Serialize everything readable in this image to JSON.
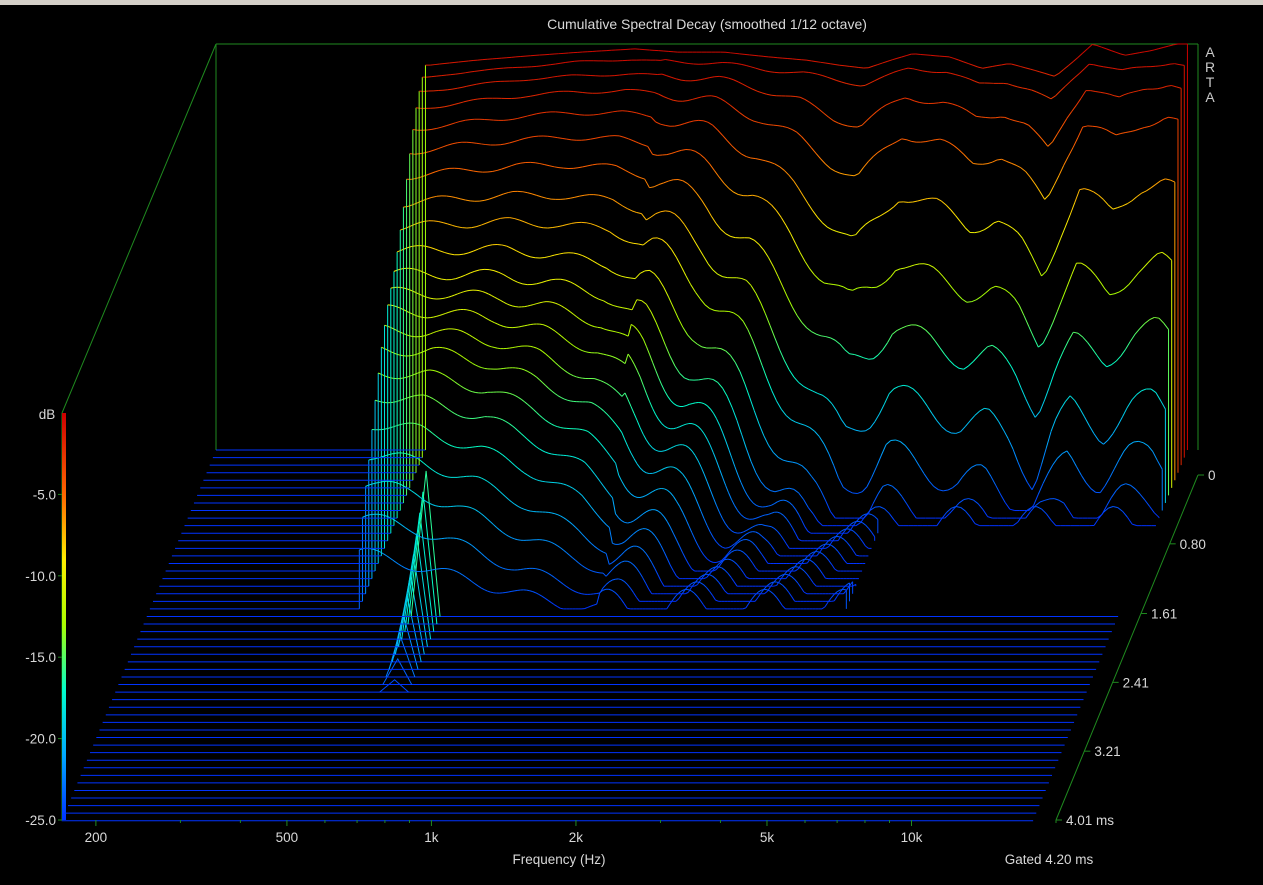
{
  "app": {
    "brand_letters": [
      "A",
      "R",
      "T",
      "A"
    ],
    "gated_label": "Gated 4.20 ms"
  },
  "colors": {
    "background": "#000000",
    "frame": "#1f8a1f",
    "text": "#d8d8d8",
    "window_chrome": "#d4d0c8"
  },
  "chart_data": {
    "type": "waterfall",
    "title": "Cumulative Spectral Decay (smoothed 1/12 octave)",
    "xlabel": "Frequency (Hz)",
    "x_scale": "log",
    "x_range": [
      170,
      20000
    ],
    "x_ticks": [
      {
        "value": 200,
        "label": "200"
      },
      {
        "value": 500,
        "label": "500"
      },
      {
        "value": 1000,
        "label": "1k"
      },
      {
        "value": 2000,
        "label": "2k"
      },
      {
        "value": 5000,
        "label": "5k"
      },
      {
        "value": 10000,
        "label": "10k"
      }
    ],
    "x_minor_ticks": [
      300,
      400,
      600,
      700,
      800,
      900,
      3000,
      4000,
      6000,
      7000,
      8000,
      9000,
      20000
    ],
    "zlabel": "dB",
    "z_range": [
      -25,
      0
    ],
    "z_ticks": [
      {
        "value": -5,
        "label": "-5.0"
      },
      {
        "value": -10,
        "label": "-10.0"
      },
      {
        "value": -15,
        "label": "-15.0"
      },
      {
        "value": -20,
        "label": "-20.0"
      },
      {
        "value": -25,
        "label": "-25.0"
      }
    ],
    "t_unit": "ms",
    "t_range": [
      0,
      4.01
    ],
    "t_ticks": [
      {
        "value": 0,
        "label": "0"
      },
      {
        "value": 0.8,
        "label": "0.80"
      },
      {
        "value": 1.61,
        "label": "1.61"
      },
      {
        "value": 2.41,
        "label": "2.41"
      },
      {
        "value": 3.21,
        "label": "3.21"
      },
      {
        "value": 4.01,
        "label": "4.01 ms"
      }
    ],
    "colormap": [
      {
        "db": -25,
        "color": "#0033ff"
      },
      {
        "db": -21,
        "color": "#00aaff"
      },
      {
        "db": -17,
        "color": "#00ffcc"
      },
      {
        "db": -13,
        "color": "#aaff00"
      },
      {
        "db": -9,
        "color": "#ffee00"
      },
      {
        "db": -5,
        "color": "#ff6600"
      },
      {
        "db": 0,
        "color": "#cc0000"
      }
    ],
    "slices": {
      "count": 50,
      "time_step_ms": 0.082
    },
    "lower_cutoff_hz": [
      480,
      560,
      600,
      655
    ],
    "upper_cutoff_hz": [
      19000,
      19000,
      8500,
      4600
    ],
    "series": [
      {
        "t_ms": 0.0,
        "freq_hz": [
          480,
          600,
          800,
          1000,
          1300,
          1600,
          2000,
          2500,
          3000,
          3500,
          4000,
          4500,
          5000,
          6000,
          7000,
          8000,
          9000,
          10000,
          11000,
          12000,
          14000,
          16000,
          18000,
          19000
        ],
        "db": [
          -1.3,
          -1.0,
          -0.7,
          -0.5,
          -0.3,
          -0.5,
          -0.5,
          -0.8,
          -1.0,
          -1.3,
          -1.5,
          -1.0,
          -0.6,
          -0.8,
          -1.5,
          -1.2,
          -1.6,
          -2.0,
          -1.0,
          0.0,
          -0.7,
          -0.4,
          0.0,
          0.0
        ]
      },
      {
        "t_ms": 0.08,
        "freq_hz": [
          480,
          600,
          800,
          1000,
          1300,
          1600,
          2000,
          2500,
          3000,
          3500,
          4000,
          4500,
          5000,
          6000,
          7000,
          8000,
          9000,
          10000,
          11000,
          12000,
          14000,
          16000,
          18000,
          19000
        ],
        "db": [
          -1.6,
          -1.2,
          -0.9,
          -0.6,
          -0.5,
          -0.6,
          -0.7,
          -1.1,
          -1.3,
          -1.7,
          -2.0,
          -1.5,
          -1.0,
          -1.2,
          -2.0,
          -1.8,
          -2.3,
          -3.0,
          -1.7,
          -0.6,
          -1.2,
          -0.9,
          -0.6,
          -0.8
        ]
      },
      {
        "t_ms": 0.16,
        "freq_hz": [
          480,
          600,
          800,
          1000,
          1300,
          1600,
          2000,
          2500,
          3000,
          3500,
          4000,
          4500,
          5000,
          6000,
          7000,
          8000,
          9000,
          10000,
          11000,
          12000,
          14000,
          16000,
          18000,
          19000
        ],
        "db": [
          -2.0,
          -1.6,
          -1.2,
          -1.0,
          -0.9,
          -1.0,
          -1.2,
          -1.8,
          -2.5,
          -3.5,
          -4.0,
          -3.0,
          -2.2,
          -2.6,
          -3.5,
          -3.2,
          -4.0,
          -5.5,
          -3.2,
          -1.6,
          -2.5,
          -1.6,
          -1.4,
          -1.8
        ]
      },
      {
        "t_ms": 0.25,
        "freq_hz": [
          480,
          600,
          800,
          1000,
          1300,
          1600,
          2000,
          2500,
          3000,
          3500,
          4000,
          4500,
          5000,
          6000,
          7000,
          8000,
          9000,
          10000,
          11000,
          12000,
          14000,
          16000,
          18000,
          19000
        ],
        "db": [
          -2.6,
          -2.2,
          -1.8,
          -1.6,
          -1.5,
          -1.7,
          -2.2,
          -3.2,
          -4.5,
          -6.0,
          -7.0,
          -5.5,
          -4.2,
          -4.8,
          -6.0,
          -5.5,
          -6.8,
          -8.5,
          -5.6,
          -3.6,
          -4.6,
          -3.5,
          -3.2,
          -3.6
        ]
      },
      {
        "t_ms": 0.33,
        "freq_hz": [
          480,
          600,
          800,
          1000,
          1300,
          1600,
          2000,
          2500,
          3000,
          3500,
          4000,
          4500,
          5000,
          6000,
          7000,
          8000,
          9000,
          10000,
          11000,
          12000,
          14000,
          16000,
          18000,
          19000
        ],
        "db": [
          -3.4,
          -3.0,
          -2.6,
          -2.4,
          -2.4,
          -2.7,
          -3.5,
          -5.0,
          -7.0,
          -9.0,
          -10.5,
          -9.0,
          -7.4,
          -8.2,
          -9.5,
          -9.0,
          -10.5,
          -12.5,
          -9.5,
          -7.2,
          -8.6,
          -7.0,
          -6.8,
          -7.2
        ]
      },
      {
        "t_ms": 0.41,
        "freq_hz": [
          480,
          600,
          800,
          1000,
          1300,
          1600,
          2000,
          2500,
          3000,
          3500,
          4000,
          4500,
          5000,
          6000,
          7000,
          8000,
          9000,
          10000,
          11000,
          12000,
          14000,
          16000,
          18000,
          19000
        ],
        "db": [
          -4.3,
          -3.9,
          -3.6,
          -3.4,
          -3.5,
          -4.0,
          -5.2,
          -7.0,
          -9.5,
          -12.0,
          -13.5,
          -12.5,
          -11.0,
          -12.0,
          -13.0,
          -12.8,
          -14.0,
          -16.0,
          -13.5,
          -11.5,
          -13.0,
          -11.5,
          -11.0,
          -11.5
        ]
      },
      {
        "t_ms": 0.49,
        "freq_hz": [
          480,
          600,
          800,
          1000,
          1300,
          1600,
          2000,
          2500,
          3000,
          3500,
          4000,
          4500,
          5000,
          6000,
          7000,
          8000,
          9000,
          10000,
          11000,
          12000,
          14000,
          16000,
          18000,
          19000
        ],
        "db": [
          -5.3,
          -5.0,
          -4.7,
          -4.6,
          -4.8,
          -5.5,
          -7.0,
          -9.5,
          -12.5,
          -15.0,
          -16.8,
          -16.0,
          -14.5,
          -15.5,
          -16.5,
          -16.2,
          -17.5,
          -19.5,
          -17.0,
          -15.5,
          -16.5,
          -15.0,
          -14.6,
          -15.0
        ]
      },
      {
        "t_ms": 0.57,
        "freq_hz": [
          480,
          600,
          800,
          1000,
          1300,
          1600,
          2000,
          2500,
          3000,
          3500,
          4000,
          4500,
          5000,
          6000,
          7000,
          8000,
          9000,
          10000,
          11000,
          12000,
          14000,
          16000,
          18000,
          19000
        ],
        "db": [
          -6.5,
          -6.2,
          -6.0,
          -6.0,
          -6.3,
          -7.2,
          -9.0,
          -12.0,
          -15.5,
          -18.5,
          -20.5,
          -19.5,
          -18.0,
          -19.0,
          -20.0,
          -19.8,
          -21.0,
          -23.5,
          -20.5,
          -19.0,
          -20.5,
          -19.0,
          -18.5,
          -19.0
        ]
      },
      {
        "t_ms": 0.66,
        "freq_hz": [
          480,
          600,
          800,
          1000,
          1300,
          1600,
          2000,
          2500,
          3000,
          3500,
          4000,
          4500,
          5000,
          6000,
          7000,
          8000,
          9000,
          10000,
          11000,
          12000,
          14000,
          16000,
          18000,
          19000
        ],
        "db": [
          -7.6,
          -7.4,
          -7.3,
          -7.4,
          -7.8,
          -8.9,
          -11.0,
          -14.5,
          -18.0,
          -21.0,
          -23.5,
          -23.0,
          -21.5,
          -22.5,
          -23.5,
          -23.2,
          -24.2,
          -24.8,
          -23.5,
          -22.0,
          -23.2,
          -22.0,
          -21.5,
          -22.0
        ]
      },
      {
        "t_ms": 0.74,
        "freq_hz": [
          480,
          600,
          800,
          1000,
          1300,
          1600,
          2000,
          2500,
          3000,
          3500,
          4000,
          4500,
          5000,
          6000,
          7000,
          8000,
          9000,
          10000,
          11000,
          12000,
          14000,
          16000,
          18000,
          19000
        ],
        "db": [
          -8.6,
          -8.5,
          -8.5,
          -8.8,
          -9.4,
          -10.8,
          -13.2,
          -17.0,
          -20.5,
          -23.5,
          -25.0,
          -25.0,
          -24.0,
          -24.5,
          -25.0,
          -24.8,
          -25.0,
          -25.0,
          -25.0,
          -24.2,
          -24.8,
          -24.0,
          -23.8,
          -24.0
        ]
      },
      {
        "t_ms": 0.82,
        "freq_hz": [
          480,
          600,
          800,
          1000,
          1300,
          1600,
          2000,
          2500,
          3000,
          3500,
          4000,
          4500,
          5000,
          6000,
          7000,
          8000,
          9000,
          10000,
          11000,
          12000,
          14000,
          16000,
          18000,
          19000
        ],
        "db": [
          -9.5,
          -9.5,
          -9.6,
          -10.0,
          -10.8,
          -12.5,
          -15.2,
          -19.0,
          -22.5,
          -24.8,
          -25.0,
          -25.0,
          -25.0,
          -25.0,
          -25.0,
          -25.0,
          -25.0,
          -25.0,
          -25.0,
          -25.0,
          -25.0,
          -25.0,
          -25.0,
          -25.0
        ]
      },
      {
        "t_ms": 0.9,
        "freq_hz": [
          480,
          600,
          800,
          1000,
          1300,
          1600,
          2000,
          2500,
          3000,
          3500,
          4000,
          4500,
          5000
        ],
        "db": [
          -10.2,
          -10.2,
          -10.5,
          -11.0,
          -12.0,
          -13.8,
          -16.8,
          -20.5,
          -23.5,
          -25.0,
          -25.0,
          -25.0,
          -25.0
        ]
      },
      {
        "t_ms": 0.98,
        "freq_hz": [
          480,
          600,
          800,
          1000,
          1300,
          1600,
          2000,
          2500,
          3000,
          3500,
          4000,
          4500,
          5000
        ],
        "db": [
          -10.8,
          -10.9,
          -11.3,
          -12.0,
          -13.2,
          -15.0,
          -18.2,
          -21.5,
          -24.2,
          -25.0,
          -25.0,
          -25.0,
          -25.0
        ]
      },
      {
        "t_ms": 1.06,
        "freq_hz": [
          480,
          600,
          800,
          1000,
          1300,
          1600,
          2000,
          2500,
          3000,
          3500,
          4000,
          4500,
          5000
        ],
        "db": [
          -11.5,
          -11.6,
          -12.2,
          -13.0,
          -14.5,
          -16.5,
          -19.5,
          -22.5,
          -24.8,
          -25.0,
          -25.0,
          -25.0,
          -25.0
        ]
      },
      {
        "t_ms": 1.15,
        "freq_hz": [
          480,
          600,
          800,
          1000,
          1300,
          1600,
          2000,
          2500,
          3000,
          3500,
          4000,
          4500,
          5000
        ],
        "db": [
          -12.3,
          -12.4,
          -13.2,
          -14.2,
          -15.8,
          -18.0,
          -21.0,
          -23.5,
          -25.0,
          -25.0,
          -25.0,
          -25.0,
          -25.0
        ]
      },
      {
        "t_ms": 1.23,
        "freq_hz": [
          480,
          600,
          800,
          1000,
          1300,
          1600,
          2000,
          2500,
          3000,
          3500,
          4000,
          4500,
          5000
        ],
        "db": [
          -13.2,
          -13.4,
          -14.3,
          -15.5,
          -17.2,
          -19.5,
          -22.2,
          -24.2,
          -25.0,
          -25.0,
          -25.0,
          -25.0,
          -25.0
        ]
      },
      {
        "t_ms": 1.31,
        "freq_hz": [
          480,
          600,
          800,
          1000,
          1300,
          1600,
          2000,
          2500,
          3000,
          3500,
          4000,
          4500,
          5000
        ],
        "db": [
          -14.2,
          -14.5,
          -15.5,
          -16.8,
          -18.6,
          -21.0,
          -23.2,
          -24.8,
          -25.0,
          -25.0,
          -25.0,
          -25.0,
          -25.0
        ]
      },
      {
        "t_ms": 1.39,
        "freq_hz": [
          480,
          600,
          800,
          1000,
          1300,
          1600,
          2000,
          2500,
          3000,
          3500,
          4000,
          4500,
          5000
        ],
        "db": [
          -15.4,
          -15.8,
          -17.0,
          -18.2,
          -20.0,
          -22.2,
          -24.0,
          -25.0,
          -25.0,
          -25.0,
          -25.0,
          -25.0,
          -25.0
        ]
      },
      {
        "t_ms": 1.47,
        "freq_hz": [
          480,
          600,
          800,
          1000,
          1300,
          1600,
          2000,
          2500,
          3000,
          3500,
          4000,
          4500,
          5000
        ],
        "db": [
          -16.8,
          -17.2,
          -18.5,
          -19.8,
          -21.5,
          -23.2,
          -24.6,
          -25.0,
          -25.0,
          -25.0,
          -25.0,
          -25.0,
          -25.0
        ]
      },
      {
        "t_ms": 1.56,
        "freq_hz": [
          480,
          600,
          800,
          1000,
          1300,
          1600,
          2000,
          2500,
          3000,
          3500,
          4000,
          4500,
          5000
        ],
        "db": [
          -18.2,
          -18.8,
          -20.2,
          -21.5,
          -22.8,
          -24.0,
          -25.0,
          -25.0,
          -25.0,
          -25.0,
          -25.0,
          -25.0,
          -25.0
        ]
      },
      {
        "t_ms": 1.64,
        "freq_hz": [
          480,
          600,
          800,
          1000,
          1300,
          1600,
          2000,
          2500,
          3000,
          3500,
          4000,
          4500,
          5000
        ],
        "db": [
          -19.8,
          -20.5,
          -21.8,
          -23.0,
          -24.0,
          -24.8,
          -25.0,
          -25.0,
          -25.0,
          -25.0,
          -25.0,
          -25.0,
          -25.0
        ]
      },
      {
        "t_ms": 1.72,
        "freq_hz": [
          480,
          600,
          800,
          1000,
          1300,
          1600,
          2000,
          2500,
          3000,
          3500,
          4000,
          4500,
          5000
        ],
        "db": [
          -21.5,
          -22.2,
          -23.2,
          -24.0,
          -24.8,
          -25.0,
          -25.0,
          -25.0,
          -25.0,
          -25.0,
          -25.0,
          -25.0,
          -25.0
        ]
      },
      {
        "t_ms": 1.8,
        "freq_hz": [
          480,
          600,
          800,
          1000,
          1300,
          1600,
          2000,
          2500,
          3000,
          3500,
          4000,
          4500,
          5000
        ],
        "db": [
          -23.2,
          -23.8,
          -24.5,
          -25.0,
          -25.0,
          -25.0,
          -25.0,
          -25.0,
          -25.0,
          -25.0,
          -25.0,
          -25.0,
          -25.0
        ]
      }
    ],
    "residual_peak": {
      "freq_hz": 660,
      "from_ms": 1.8,
      "to_ms": 2.65,
      "db_start": -16.0,
      "db_end": -24.5
    }
  }
}
